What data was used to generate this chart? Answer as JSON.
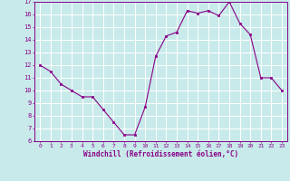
{
  "x": [
    0,
    1,
    2,
    3,
    4,
    5,
    6,
    7,
    8,
    9,
    10,
    11,
    12,
    13,
    14,
    15,
    16,
    17,
    18,
    19,
    20,
    21,
    22,
    23
  ],
  "y": [
    12.0,
    11.5,
    10.5,
    10.0,
    9.5,
    9.5,
    8.5,
    7.5,
    6.5,
    6.5,
    8.7,
    12.7,
    14.3,
    14.6,
    16.3,
    16.1,
    16.3,
    15.9,
    17.0,
    15.3,
    14.4,
    11.0,
    11.0,
    10.0
  ],
  "line_color": "#880088",
  "marker_color": "#880088",
  "bg_color": "#c8eaea",
  "grid_color": "#ffffff",
  "xlabel": "Windchill (Refroidissement éolien,°C)",
  "xlabel_color": "#880088",
  "tick_color": "#880088",
  "ylim": [
    6,
    17
  ],
  "xlim_min": -0.5,
  "xlim_max": 23.5,
  "yticks": [
    6,
    7,
    8,
    9,
    10,
    11,
    12,
    13,
    14,
    15,
    16,
    17
  ],
  "xticks": [
    0,
    1,
    2,
    3,
    4,
    5,
    6,
    7,
    8,
    9,
    10,
    11,
    12,
    13,
    14,
    15,
    16,
    17,
    18,
    19,
    20,
    21,
    22,
    23
  ],
  "xtick_labels": [
    "0",
    "1",
    "2",
    "3",
    "4",
    "5",
    "6",
    "7",
    "8",
    "9",
    "10",
    "11",
    "12",
    "13",
    "14",
    "15",
    "16",
    "17",
    "18",
    "19",
    "20",
    "21",
    "22",
    "23"
  ]
}
